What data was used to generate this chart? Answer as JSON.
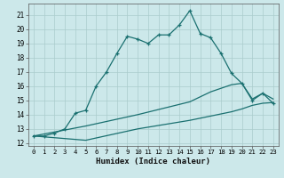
{
  "xlabel": "Humidex (Indice chaleur)",
  "bg_color": "#cce8ea",
  "grid_color": "#aacccc",
  "line_color": "#1a7070",
  "xlim": [
    -0.5,
    23.5
  ],
  "ylim": [
    11.8,
    21.8
  ],
  "xticks": [
    0,
    1,
    2,
    3,
    4,
    5,
    6,
    7,
    8,
    9,
    10,
    11,
    12,
    13,
    14,
    15,
    16,
    17,
    18,
    19,
    20,
    21,
    22,
    23
  ],
  "yticks": [
    12,
    13,
    14,
    15,
    16,
    17,
    18,
    19,
    20,
    21
  ],
  "line1_x": [
    0,
    1,
    2,
    3,
    4,
    5,
    6,
    7,
    8,
    9,
    10,
    11,
    12,
    13,
    14,
    15,
    16,
    17,
    18,
    19,
    20,
    21,
    22,
    23
  ],
  "line1_y": [
    12.5,
    12.5,
    12.7,
    13.0,
    14.1,
    14.3,
    16.0,
    17.0,
    18.3,
    19.5,
    19.3,
    19.0,
    19.6,
    19.6,
    20.3,
    21.3,
    19.7,
    19.4,
    18.3,
    16.9,
    16.2,
    15.0,
    15.5,
    14.8
  ],
  "line2_x": [
    0,
    5,
    10,
    15,
    17,
    19,
    20,
    21,
    22,
    23
  ],
  "line2_y": [
    12.5,
    13.2,
    14.0,
    14.9,
    15.6,
    16.1,
    16.2,
    15.1,
    15.5,
    15.1
  ],
  "line3_x": [
    0,
    5,
    10,
    15,
    19,
    20,
    21,
    22,
    23
  ],
  "line3_y": [
    12.5,
    12.2,
    13.0,
    13.6,
    14.2,
    14.4,
    14.65,
    14.8,
    14.85
  ]
}
